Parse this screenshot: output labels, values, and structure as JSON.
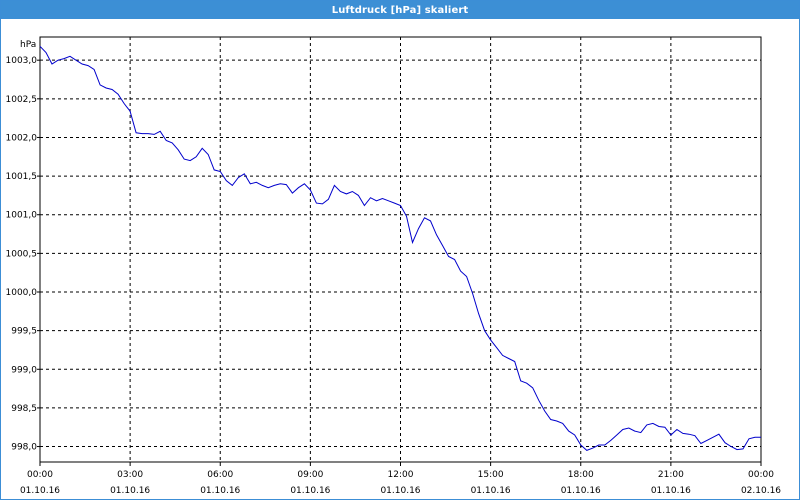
{
  "window": {
    "title": "Luftdruck [hPa] skaliert"
  },
  "chart_data": {
    "type": "line",
    "title": "Luftdruck [hPa] skaliert",
    "ylabel": "hPa",
    "xlabel": "",
    "ylim": [
      997.8,
      1003.3
    ],
    "xlim_hours": [
      0,
      24
    ],
    "grid": true,
    "line_color": "#0000cc",
    "y_ticks": [
      {
        "value": 1003.0,
        "label": "1003,0"
      },
      {
        "value": 1002.5,
        "label": "1002,5"
      },
      {
        "value": 1002.0,
        "label": "1002,0"
      },
      {
        "value": 1001.5,
        "label": "1001,5"
      },
      {
        "value": 1001.0,
        "label": "1001,0"
      },
      {
        "value": 1000.5,
        "label": "1000,5"
      },
      {
        "value": 1000.0,
        "label": "1000,0"
      },
      {
        "value": 999.5,
        "label": "999,5"
      },
      {
        "value": 999.0,
        "label": "999,0"
      },
      {
        "value": 998.5,
        "label": "998,5"
      },
      {
        "value": 998.0,
        "label": "998,0"
      }
    ],
    "x_ticks": [
      {
        "hour": 0,
        "time": "00:00",
        "date": "01.10.16"
      },
      {
        "hour": 3,
        "time": "03:00",
        "date": "01.10.16"
      },
      {
        "hour": 6,
        "time": "06:00",
        "date": "01.10.16"
      },
      {
        "hour": 9,
        "time": "09:00",
        "date": "01.10.16"
      },
      {
        "hour": 12,
        "time": "12:00",
        "date": "01.10.16"
      },
      {
        "hour": 15,
        "time": "15:00",
        "date": "01.10.16"
      },
      {
        "hour": 18,
        "time": "18:00",
        "date": "01.10.16"
      },
      {
        "hour": 21,
        "time": "21:00",
        "date": "01.10.16"
      },
      {
        "hour": 24,
        "time": "00:00",
        "date": "02.10.16"
      }
    ],
    "series": [
      {
        "x_hours": [
          0.0,
          0.2,
          0.4,
          0.6,
          0.8,
          1.0,
          1.2,
          1.4,
          1.6,
          1.8,
          2.0,
          2.2,
          2.4,
          2.6,
          2.8,
          3.0,
          3.2,
          3.4,
          3.6,
          3.8,
          4.0,
          4.2,
          4.4,
          4.6,
          4.8,
          5.0,
          5.2,
          5.4,
          5.6,
          5.8,
          6.0,
          6.2,
          6.4,
          6.6,
          6.8,
          7.0,
          7.2,
          7.4,
          7.6,
          7.8,
          8.0,
          8.2,
          8.4,
          8.6,
          8.8,
          9.0,
          9.2,
          9.4,
          9.6,
          9.8,
          10.0,
          10.2,
          10.4,
          10.6,
          10.8,
          11.0,
          11.2,
          11.4,
          11.6,
          11.8,
          12.0,
          12.2,
          12.4,
          12.6,
          12.8,
          13.0,
          13.2,
          13.4,
          13.6,
          13.8,
          14.0,
          14.2,
          14.4,
          14.6,
          14.8,
          15.0,
          15.2,
          15.4,
          15.6,
          15.8,
          16.0,
          16.2,
          16.4,
          16.6,
          16.8,
          17.0,
          17.2,
          17.4,
          17.6,
          17.8,
          18.0,
          18.2,
          18.4,
          18.6,
          18.8,
          19.0,
          19.2,
          19.4,
          19.6,
          19.8,
          20.0,
          20.2,
          20.4,
          20.6,
          20.8,
          21.0,
          21.2,
          21.4,
          21.6,
          21.8,
          22.0,
          22.2,
          22.4,
          22.6,
          22.8,
          23.0,
          23.2,
          23.4,
          23.6,
          23.8,
          24.0
        ],
        "values": [
          1003.18,
          1003.1,
          1002.95,
          1003.0,
          1003.02,
          1003.05,
          1003.0,
          1002.95,
          1002.93,
          1002.88,
          1002.68,
          1002.64,
          1002.62,
          1002.56,
          1002.44,
          1002.34,
          1002.06,
          1002.05,
          1002.05,
          1002.04,
          1002.08,
          1001.96,
          1001.93,
          1001.84,
          1001.72,
          1001.7,
          1001.75,
          1001.86,
          1001.78,
          1001.58,
          1001.56,
          1001.44,
          1001.38,
          1001.48,
          1001.53,
          1001.4,
          1001.42,
          1001.38,
          1001.35,
          1001.38,
          1001.4,
          1001.39,
          1001.28,
          1001.35,
          1001.4,
          1001.32,
          1001.15,
          1001.14,
          1001.2,
          1001.38,
          1001.3,
          1001.27,
          1001.3,
          1001.25,
          1001.12,
          1001.22,
          1001.18,
          1001.21,
          1001.18,
          1001.15,
          1001.12,
          1000.98,
          1000.64,
          1000.82,
          1000.96,
          1000.92,
          1000.74,
          1000.6,
          1000.46,
          1000.42,
          1000.27,
          1000.2,
          999.98,
          999.72,
          999.5,
          999.38,
          999.28,
          999.18,
          999.14,
          999.1,
          998.85,
          998.82,
          998.76,
          998.6,
          998.46,
          998.35,
          998.33,
          998.3,
          998.2,
          998.15,
          998.02,
          997.95,
          997.98,
          998.02,
          998.02,
          998.08,
          998.15,
          998.22,
          998.24,
          998.2,
          998.18,
          998.28,
          998.3,
          998.26,
          998.25,
          998.15,
          998.22,
          998.17,
          998.16,
          998.14,
          998.04,
          998.08,
          998.12,
          998.16,
          998.05,
          998.0,
          997.96,
          997.97,
          998.1,
          998.12,
          998.12
        ]
      }
    ]
  }
}
